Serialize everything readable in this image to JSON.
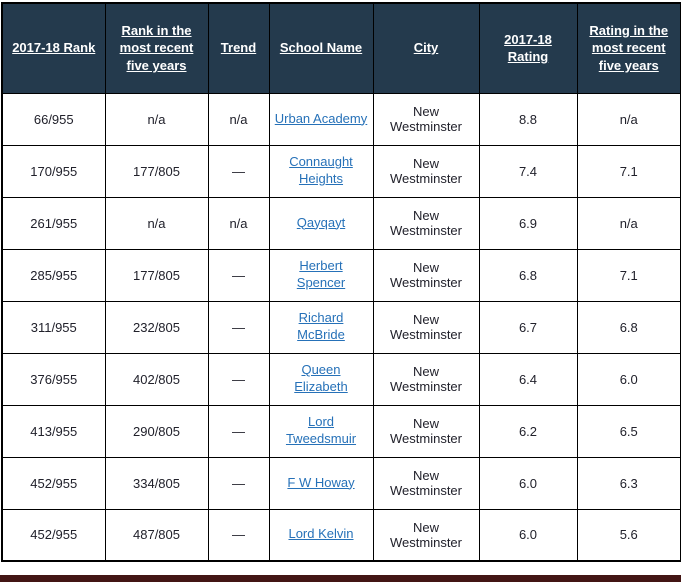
{
  "table": {
    "columns": [
      {
        "key": "rank",
        "label": "2017-18 Rank"
      },
      {
        "key": "rank_recent",
        "label": "Rank in the most recent five years"
      },
      {
        "key": "trend",
        "label": "Trend"
      },
      {
        "key": "school",
        "label": "School Name"
      },
      {
        "key": "city",
        "label": "City"
      },
      {
        "key": "rating",
        "label": "2017-18 Rating"
      },
      {
        "key": "rating_recent",
        "label": "Rating in the most recent five years"
      }
    ],
    "rows": [
      {
        "rank": "66/955",
        "rank_recent": "n/a",
        "trend": "n/a",
        "school": "Urban Academy",
        "city": "New Westminster",
        "rating": "8.8",
        "rating_recent": "n/a"
      },
      {
        "rank": "170/955",
        "rank_recent": "177/805",
        "trend": "—",
        "school": "Connaught Heights",
        "city": "New Westminster",
        "rating": "7.4",
        "rating_recent": "7.1"
      },
      {
        "rank": "261/955",
        "rank_recent": "n/a",
        "trend": "n/a",
        "school": "Qayqayt",
        "city": "New Westminster",
        "rating": "6.9",
        "rating_recent": "n/a"
      },
      {
        "rank": "285/955",
        "rank_recent": "177/805",
        "trend": "—",
        "school": "Herbert Spencer",
        "city": "New Westminster",
        "rating": "6.8",
        "rating_recent": "7.1"
      },
      {
        "rank": "311/955",
        "rank_recent": "232/805",
        "trend": "—",
        "school": "Richard McBride",
        "city": "New Westminster",
        "rating": "6.7",
        "rating_recent": "6.8"
      },
      {
        "rank": "376/955",
        "rank_recent": "402/805",
        "trend": "—",
        "school": "Queen Elizabeth",
        "city": "New Westminster",
        "rating": "6.4",
        "rating_recent": "6.0"
      },
      {
        "rank": "413/955",
        "rank_recent": "290/805",
        "trend": "—",
        "school": "Lord Tweedsmuir",
        "city": "New Westminster",
        "rating": "6.2",
        "rating_recent": "6.5"
      },
      {
        "rank": "452/955",
        "rank_recent": "334/805",
        "trend": "—",
        "school": "F W Howay",
        "city": "New Westminster",
        "rating": "6.0",
        "rating_recent": "6.3"
      },
      {
        "rank": "452/955",
        "rank_recent": "487/805",
        "trend": "—",
        "school": "Lord Kelvin",
        "city": "New Westminster",
        "rating": "6.0",
        "rating_recent": "5.6"
      }
    ]
  },
  "colors": {
    "header_bg": "#243a4d",
    "header_text": "#ffffff",
    "link": "#2671b8",
    "border": "#000000",
    "footer_bar": "#431514",
    "cell_text": "#21212b"
  }
}
